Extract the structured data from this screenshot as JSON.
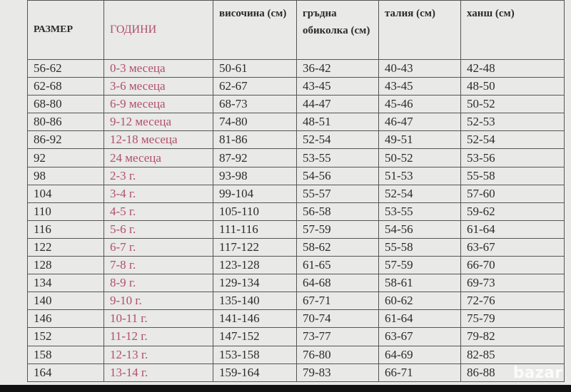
{
  "table": {
    "header": [
      "РАЗМЕР",
      "ГОДИНИ",
      "височина (см)",
      "гръдна обиколка (см)",
      "талия (см)",
      "ханш (см)"
    ],
    "rows": [
      [
        "56-62",
        "0-3 месеца",
        "50-61",
        "36-42",
        "40-43",
        "42-48"
      ],
      [
        "62-68",
        "3-6 месеца",
        "62-67",
        "43-45",
        "43-45",
        "48-50"
      ],
      [
        "68-80",
        "6-9 месеца",
        "68-73",
        "44-47",
        "45-46",
        "50-52"
      ],
      [
        "80-86",
        "9-12 месеца",
        "74-80",
        "48-51",
        "46-47",
        "52-53"
      ],
      [
        "86-92",
        "12-18 месеца",
        "81-86",
        "52-54",
        "49-51",
        "52-54"
      ],
      [
        "92",
        "24 месеца",
        "87-92",
        "53-55",
        "50-52",
        "53-56"
      ],
      [
        "98",
        "2-3 г.",
        "93-98",
        "54-56",
        "51-53",
        "55-58"
      ],
      [
        "104",
        "3-4 г.",
        "99-104",
        "55-57",
        "52-54",
        "57-60"
      ],
      [
        "110",
        "4-5 г.",
        "105-110",
        "56-58",
        "53-55",
        "59-62"
      ],
      [
        "116",
        "5-6 г.",
        "111-116",
        "57-59",
        "54-56",
        "61-64"
      ],
      [
        "122",
        "6-7 г.",
        "117-122",
        "58-62",
        "55-58",
        "63-67"
      ],
      [
        "128",
        "7-8 г.",
        "123-128",
        "61-65",
        "57-59",
        "66-70"
      ],
      [
        "134",
        "8-9 г.",
        "129-134",
        "64-68",
        "58-61",
        "69-73"
      ],
      [
        "140",
        "9-10 г.",
        "135-140",
        "67-71",
        "60-62",
        "72-76"
      ],
      [
        "146",
        "10-11 г.",
        "141-146",
        "70-74",
        "61-64",
        "75-79"
      ],
      [
        "152",
        "11-12 г.",
        "147-152",
        "73-77",
        "63-67",
        "79-82"
      ],
      [
        "158",
        "12-13 г.",
        "153-158",
        "76-80",
        "64-69",
        "82-85"
      ],
      [
        "164",
        "13-14 г.",
        "159-164",
        "79-83",
        "66-71",
        "86-88"
      ]
    ]
  },
  "watermark": "bazar"
}
